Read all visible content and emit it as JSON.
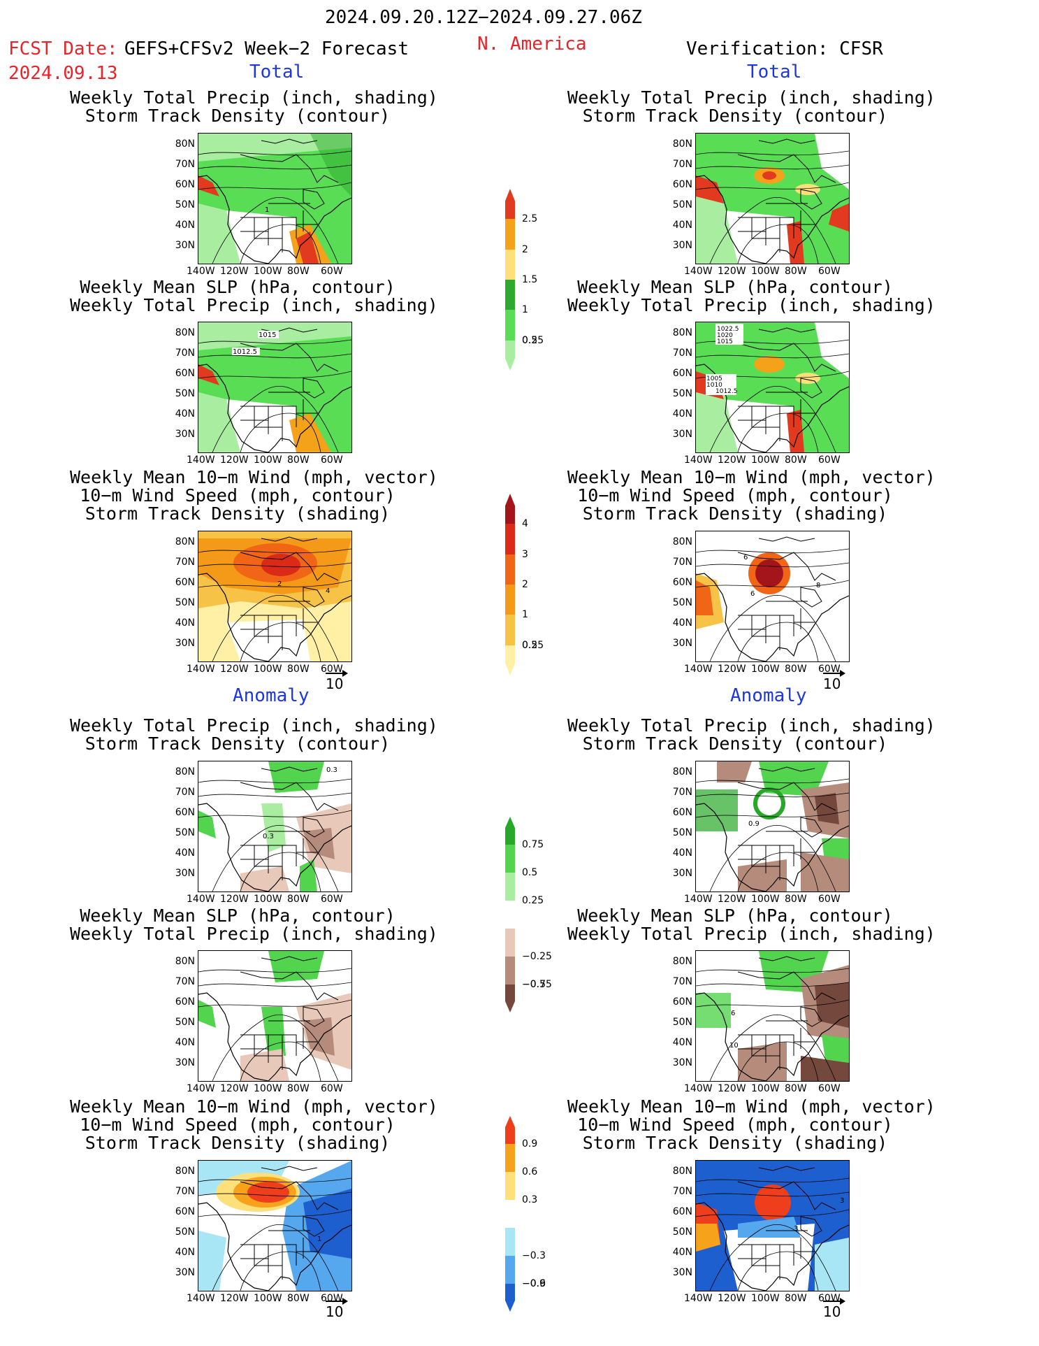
{
  "header": {
    "period": "2024.09.20.12Z−2024.09.27.06Z",
    "fcst_label": "FCST Date:",
    "fcst_product": "GEFS+CFSv2 Week−2 Forecast",
    "fcst_date": "2024.09.13",
    "region": "N. America",
    "verification": "Verification: CFSR"
  },
  "sections": {
    "total": "Total",
    "anomaly": "Anomaly"
  },
  "titles": {
    "precip_track": [
      "Weekly Total Precip (inch, shading)",
      "Storm Track Density (contour)"
    ],
    "slp_precip": [
      "Weekly Mean SLP (hPa, contour)",
      "Weekly Total Precip (inch, shading)"
    ],
    "wind_track": [
      "Weekly Mean 10−m Wind (mph, vector)",
      "10−m Wind Speed (mph, contour)",
      "Storm Track Density (shading)"
    ]
  },
  "axes": {
    "lat": [
      "80N",
      "70N",
      "60N",
      "50N",
      "40N",
      "30N"
    ],
    "lon": [
      "140W",
      "120W",
      "100W",
      "80W",
      "60W"
    ]
  },
  "vector_ref": "10",
  "contour_labels": {
    "fc_slp_total": [
      "1015",
      "1012.5"
    ],
    "ver_slp_total": [
      "1022.5",
      "1020",
      "1015",
      "1005",
      "1010",
      "1012.5"
    ],
    "fc_track_total": [
      "1"
    ],
    "fc_wind_total": [
      "2",
      "4"
    ],
    "ver_wind_total": [
      "6",
      "6",
      "8"
    ],
    "fc_precip_anom": [
      "0.3",
      "0.3"
    ],
    "ver_precip_anom": [
      "0.9"
    ],
    "ver_slp_anom": [
      "6",
      "10"
    ],
    "fc_wind_anom": [
      "1"
    ],
    "ver_wind_anom": [
      "3",
      "3"
    ]
  },
  "colorbars": {
    "precip_total": {
      "labels": [
        "2.5",
        "2",
        "1.5",
        "1",
        "0.5",
        "0.25"
      ],
      "colors": [
        "#e23a1f",
        "#f5a21b",
        "#fde07a",
        "#2ea82e",
        "#59dd55",
        "#a9eea0"
      ]
    },
    "track_total": {
      "labels": [
        "4",
        "3",
        "2",
        "1",
        "0.5",
        "0.25"
      ],
      "colors": [
        "#a3151b",
        "#db2a17",
        "#f06616",
        "#f59a18",
        "#f7c346",
        "#fff0a6"
      ]
    },
    "precip_anom": {
      "labels": [
        "0.75",
        "0.5",
        "0.25",
        "−0.25",
        "−0.5",
        "−0.75"
      ],
      "colors": [
        "#28a828",
        "#52d44e",
        "#a9eea0",
        "#ffffff",
        "#e8c8b8",
        "#b58c7c",
        "#74483c"
      ]
    },
    "track_anom": {
      "labels": [
        "0.9",
        "0.6",
        "0.3",
        "−0.3",
        "−0.6",
        "−0.9"
      ],
      "colors": [
        "#ef3e1c",
        "#f7a21b",
        "#fde07a",
        "#ffffff",
        "#a9e6f5",
        "#55a8ee",
        "#1e5fd0"
      ]
    }
  }
}
